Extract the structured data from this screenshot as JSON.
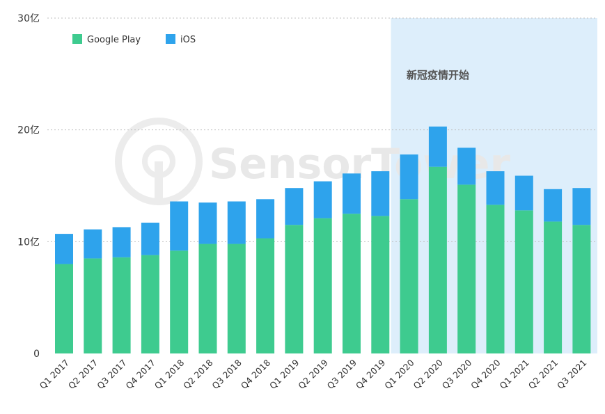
{
  "chart_data": {
    "type": "bar",
    "stacked": true,
    "categories": [
      "Q1 2017",
      "Q2 2017",
      "Q3 2017",
      "Q4 2017",
      "Q1 2018",
      "Q2 2018",
      "Q3 2018",
      "Q4 2018",
      "Q1 2019",
      "Q2 2019",
      "Q3 2019",
      "Q4 2019",
      "Q1 2020",
      "Q2 2020",
      "Q3 2020",
      "Q4 2020",
      "Q1 2021",
      "Q2 2021",
      "Q3 2021"
    ],
    "series": [
      {
        "name": "Google Play",
        "color": "#3ecb8f",
        "values": [
          8.0,
          8.5,
          8.6,
          8.8,
          9.2,
          9.8,
          9.8,
          10.3,
          11.5,
          12.1,
          12.5,
          12.3,
          13.8,
          16.7,
          15.1,
          13.3,
          12.8,
          11.8,
          11.5
        ]
      },
      {
        "name": "iOS",
        "color": "#2ea3ec",
        "values": [
          2.7,
          2.6,
          2.7,
          2.9,
          4.4,
          3.7,
          3.8,
          3.5,
          3.3,
          3.3,
          3.6,
          4.0,
          4.0,
          3.6,
          3.3,
          3.0,
          3.1,
          2.9,
          3.3
        ]
      }
    ],
    "yticks": [
      "0",
      "10亿",
      "20亿",
      "30亿"
    ],
    "ylim": [
      0,
      30
    ],
    "grid": true,
    "legend_position": "top-left",
    "annotation": {
      "text": "新冠疫情开始",
      "start_category": "Q1 2020",
      "end_category": "Q3 2021",
      "color": "#ddeefb"
    }
  },
  "watermark": "SensorTower"
}
